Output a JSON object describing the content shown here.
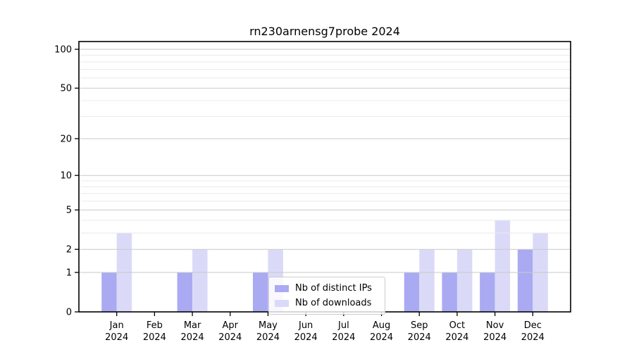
{
  "chart_data": {
    "type": "bar",
    "title": "rn230arnensg7probe 2024",
    "categories": [
      "Jan",
      "Feb",
      "Mar",
      "Apr",
      "May",
      "Jun",
      "Jul",
      "Aug",
      "Sep",
      "Oct",
      "Nov",
      "Dec"
    ],
    "category_year": "2024",
    "series": [
      {
        "name": "Nb of distinct IPs",
        "color": "#aaaaf2",
        "values": [
          1,
          0,
          1,
          0,
          1,
          0,
          0,
          0,
          1,
          1,
          1,
          2
        ]
      },
      {
        "name": "Nb of downloads",
        "color": "#dadaf8",
        "values": [
          3,
          0,
          2,
          0,
          2,
          0,
          0,
          0,
          2,
          2,
          4,
          3
        ]
      }
    ],
    "xlabel": "",
    "ylabel": "",
    "yscale": "log1p",
    "ylim": [
      0,
      100
    ],
    "yticks_major": [
      0,
      1,
      2,
      5,
      10,
      20,
      50,
      100
    ],
    "yticks_minor": [
      3,
      4,
      6,
      7,
      8,
      9,
      30,
      40,
      60,
      70,
      80,
      90
    ],
    "grid": "both",
    "legend_position": "lower center-right inside plot"
  },
  "colors": {
    "axis": "#000000",
    "tick_label": "#000000",
    "grid_major": "#c9c9c9",
    "grid_minor": "#eaeaea",
    "legend_border": "#cccccc"
  }
}
